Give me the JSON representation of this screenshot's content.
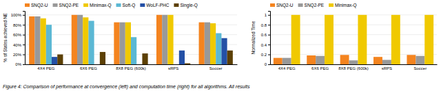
{
  "chart_data": [
    {
      "type": "bar",
      "categories": [
        "4X4 PEG",
        "6X6 PEG",
        "8X8 PEG (600k)",
        "sRPS",
        "Soccer"
      ],
      "series": [
        {
          "name": "SNQ2-U",
          "color": "#F4841F",
          "values": [
            97,
            100,
            85,
            100,
            85
          ]
        },
        {
          "name": "SNQ2-PE",
          "color": "#999999",
          "values": [
            97,
            100,
            85,
            100,
            85
          ]
        },
        {
          "name": "Minimax-Q",
          "color": "#F0C900",
          "values": [
            93,
            95,
            85,
            100,
            83
          ]
        },
        {
          "name": "Soft-Q",
          "color": "#5BB8D4",
          "values": [
            80,
            88,
            55,
            0,
            63
          ]
        },
        {
          "name": "WoLF-PHC",
          "color": "#2450A6",
          "values": [
            15,
            0,
            0,
            28,
            53
          ]
        },
        {
          "name": "Single-Q",
          "color": "#5C4005",
          "values": [
            20,
            25,
            22,
            2,
            28
          ]
        }
      ],
      "y_label": "% of States achieved NE",
      "ylim": [
        0,
        108
      ],
      "yticks": [
        {
          "value": 0,
          "label": "0%"
        },
        {
          "value": 20,
          "label": "20%"
        },
        {
          "value": 40,
          "label": "40%"
        },
        {
          "value": 60,
          "label": "60%"
        },
        {
          "value": 80,
          "label": "80%"
        },
        {
          "value": 100,
          "label": "100%"
        }
      ],
      "grid": true,
      "legend": "top-left",
      "annotations": [
        "Figure 4: Comparison of performance at convergence (left) and computation time (right) for all algorithms.  All results"
      ]
    },
    {
      "type": "bar",
      "categories": [
        "4X4 PEG",
        "6X6 PEG",
        "8X8 PEG (600k)",
        "sRPS",
        "Soccer"
      ],
      "series": [
        {
          "name": "SNQ2-U",
          "color": "#F4841F",
          "values": [
            0.13,
            0.18,
            0.19,
            0.15,
            0.19
          ]
        },
        {
          "name": "SNQ2-PE",
          "color": "#999999",
          "values": [
            0.13,
            0.17,
            0.08,
            0.09,
            0.17
          ]
        },
        {
          "name": "Minimax-Q",
          "color": "#F0C900",
          "values": [
            1.0,
            1.0,
            1.0,
            1.0,
            1.0
          ]
        }
      ],
      "y_label": "Normalized Time",
      "ylim": [
        0,
        1.08
      ],
      "yticks": [
        0,
        0.2,
        0.4,
        0.6,
        0.8,
        1
      ],
      "grid": true,
      "legend": "top-left"
    }
  ]
}
